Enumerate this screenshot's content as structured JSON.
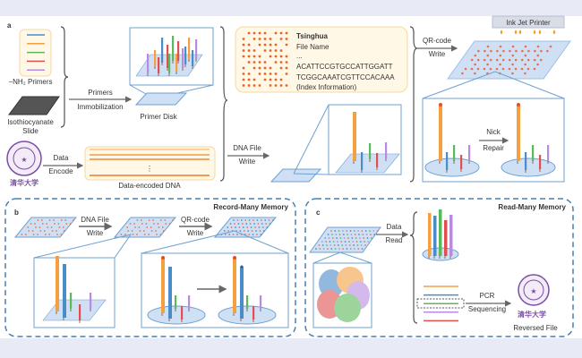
{
  "colors": {
    "blue": "#4a8cc8",
    "orange": "#f4a040",
    "green": "#5cb85c",
    "red": "#e05050",
    "purple": "#b68be0",
    "slide": "#cfe0f5",
    "slide_stroke": "#6fa0d0",
    "dash": "#4a7fb0",
    "logo": "#7a4ea0"
  },
  "panel_a": {
    "label": "a",
    "primers_label": "−NH₂ Primers",
    "slide_label_1": "Isothiocyanate",
    "slide_label_2": "Slide",
    "immob_1": "Primers",
    "immob_2": "Immobilization",
    "primer_disk": "Primer Disk",
    "encode_1": "Data",
    "encode_2": "Encode",
    "dna_ellipsis": "⋮",
    "encoded_dna": "Data-encoded DNA",
    "write_1": "DNA File",
    "write_2": "Write",
    "info": {
      "title": "Tsinghua",
      "file_name": "File Name",
      "dots": "...",
      "seq1": "ACATTCCGTGCCATTGGATT",
      "seq2": "TCGGCAAATCGTTCCACAAA",
      "index": "(Index Information)"
    },
    "qr_1": "QR-code",
    "qr_2": "Write",
    "printer": "Ink Jet Printer",
    "nick_1": "Nick",
    "nick_2": "Repair",
    "logo_text": "清华大学"
  },
  "panel_b": {
    "label": "b",
    "title": "Record-Many Memory",
    "write1_1": "DNA File",
    "write1_2": "Write",
    "write2_1": "QR-code",
    "write2_2": "Write"
  },
  "panel_c": {
    "label": "c",
    "title": "Read-Many Memory",
    "read_1": "Data",
    "read_2": "Read",
    "pcr_1": "PCR",
    "pcr_2": "Sequencing",
    "reversed": "Reversed File",
    "logo_text": "清华大学"
  }
}
